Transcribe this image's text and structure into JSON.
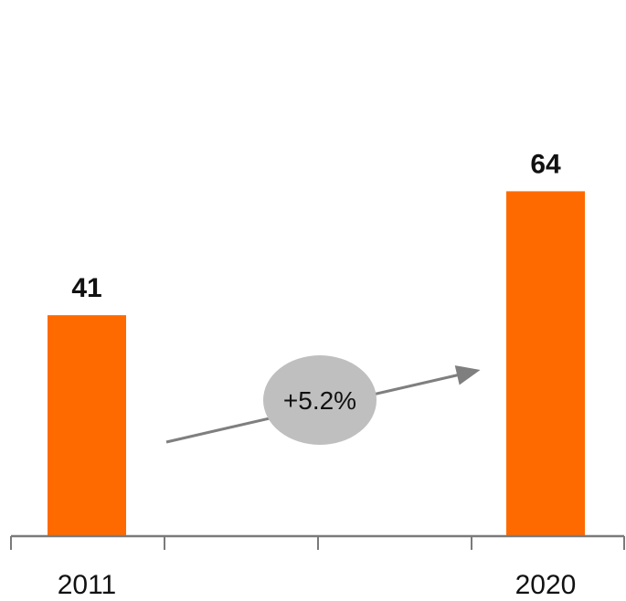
{
  "chart_data": {
    "type": "bar",
    "categories": [
      "2011",
      "2020"
    ],
    "values": [
      41,
      64
    ],
    "title": "",
    "xlabel": "",
    "ylabel": "",
    "ylim": [
      0,
      80
    ],
    "grid": false,
    "legend": "none",
    "bar_color": "#ff6a00",
    "annotations": [
      {
        "text": "+5.2%",
        "type": "cagr-arrow",
        "from": "2011",
        "to": "2020"
      }
    ]
  }
}
